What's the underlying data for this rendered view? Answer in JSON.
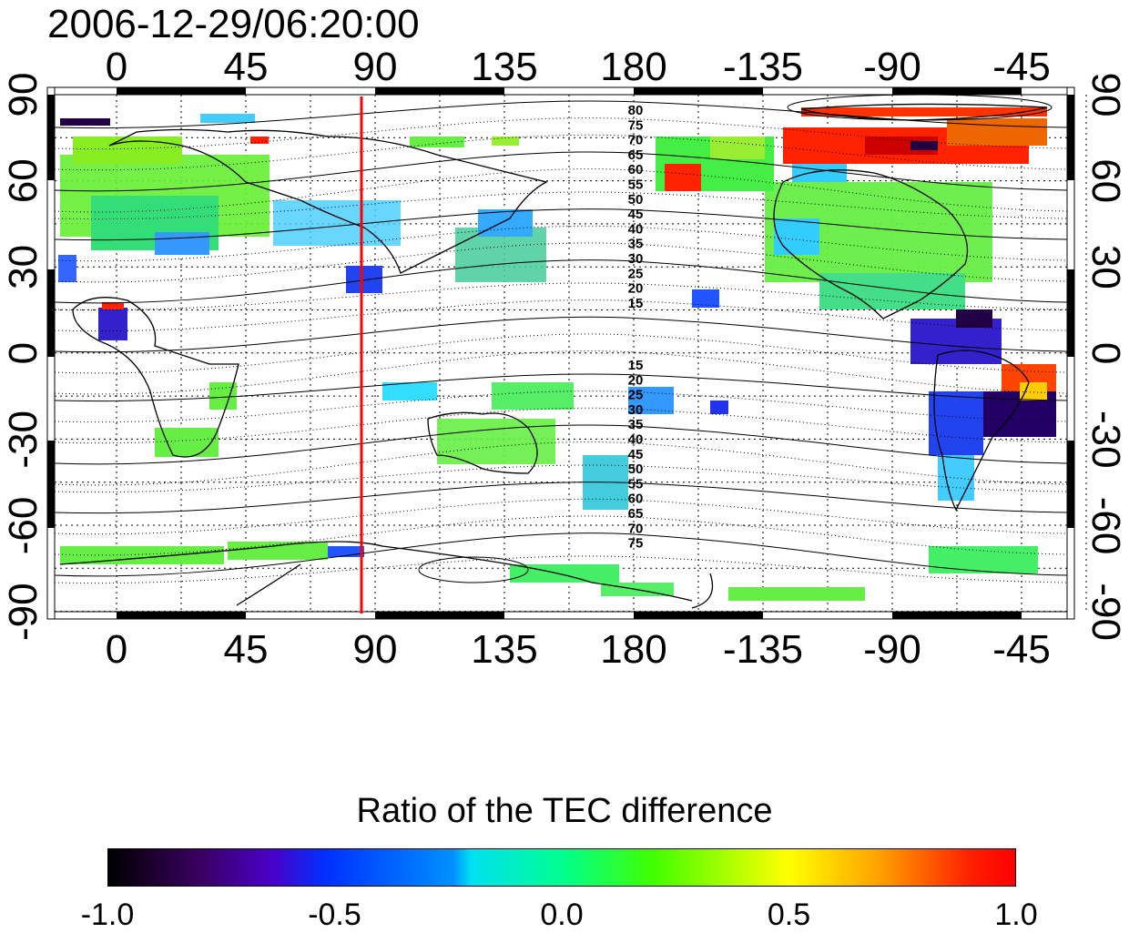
{
  "title": "2006-12-29/06:20:00",
  "map": {
    "top_lon_ticks": [
      "0",
      "45",
      "90",
      "135",
      "180",
      "-135",
      "-90",
      "-45"
    ],
    "bottom_lon_ticks": [
      "0",
      "45",
      "90",
      "135",
      "180",
      "-135",
      "-90",
      "-45"
    ],
    "left_lat_ticks": [
      "90",
      "60",
      "30",
      "0",
      "-30",
      "-60",
      "-90"
    ],
    "right_lat_ticks": [
      "90",
      "60",
      "30",
      "0",
      "-30",
      "-60",
      "-90"
    ],
    "north_contour_labels": [
      "80",
      "75",
      "70",
      "65",
      "60",
      "55",
      "50",
      "45",
      "40",
      "35",
      "30",
      "25",
      "20",
      "15"
    ],
    "south_contour_labels": [
      "15",
      "20",
      "25",
      "30",
      "35",
      "40",
      "45",
      "50",
      "55",
      "60",
      "65",
      "70",
      "75"
    ],
    "meridian_line_color": "#ff0000",
    "meridian_line_lon": 87
  },
  "colorbar": {
    "title": "Ratio of the TEC difference",
    "labels": [
      "-1.0",
      "-0.5",
      "0.0",
      "0.5",
      "1.0"
    ],
    "min": -1.0,
    "max": 1.0
  }
}
